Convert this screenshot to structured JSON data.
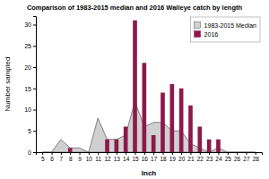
{
  "chart_data": {
    "type": "bar",
    "title": "Comparison of 1983-2015 median and 2016 Walleye catch by length",
    "xlabel": "Inch",
    "ylabel": "Number sampled",
    "x": [
      5,
      6,
      7,
      8,
      9,
      10,
      11,
      12,
      13,
      14,
      15,
      16,
      17,
      18,
      19,
      20,
      21,
      22,
      23,
      24,
      25,
      26,
      27,
      28
    ],
    "series": [
      {
        "name": "1983-2015 Median",
        "type": "area",
        "color": "#d0d0d0",
        "values": [
          0,
          0,
          3,
          1,
          1,
          0,
          8,
          3,
          3,
          4,
          12,
          6,
          7,
          7,
          5,
          5,
          2,
          1,
          0,
          1,
          0,
          0,
          0,
          0
        ]
      },
      {
        "name": "2016",
        "type": "bar",
        "color": "#8b1a4a",
        "values": [
          0,
          0,
          0,
          1,
          0,
          0,
          0,
          3,
          3,
          6,
          31,
          21,
          4,
          14,
          16,
          15,
          11,
          6,
          3,
          3,
          0,
          0,
          0,
          0
        ]
      }
    ],
    "xlim": [
      4.3,
      28.7
    ],
    "xticks": [
      5,
      6,
      7,
      8,
      9,
      10,
      11,
      12,
      13,
      14,
      15,
      16,
      17,
      18,
      19,
      20,
      21,
      22,
      23,
      24,
      25,
      26,
      27,
      28
    ],
    "ylim": [
      0,
      32
    ],
    "yticks": [
      0,
      5,
      10,
      15,
      20,
      25,
      30
    ],
    "legend": "upper right"
  }
}
